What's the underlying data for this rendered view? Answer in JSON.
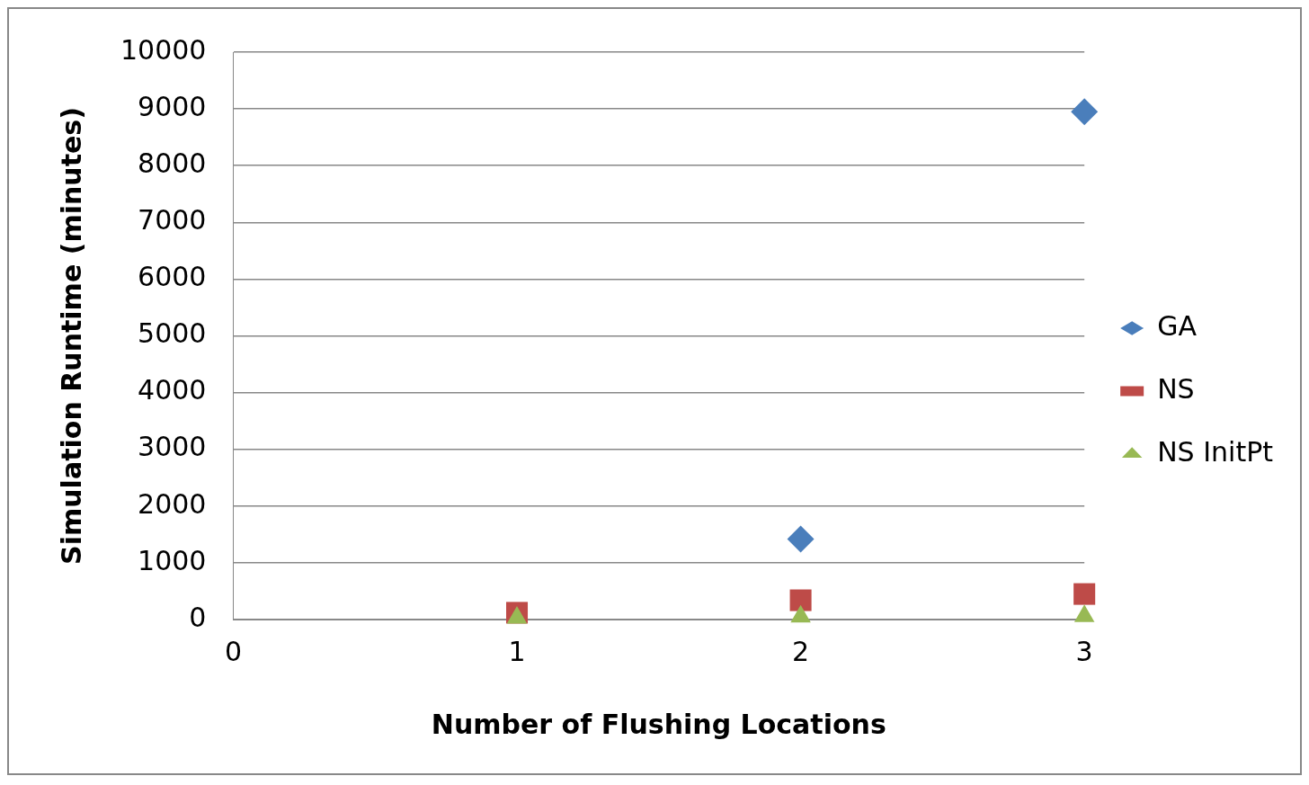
{
  "chart_data": {
    "type": "scatter",
    "xlabel": "Number of Flushing Locations",
    "ylabel": "Simulation Runtime (minutes)",
    "xlim": [
      0,
      3
    ],
    "xticks": [
      0,
      1,
      2,
      3
    ],
    "ylim": [
      0,
      10000
    ],
    "yticks": [
      0,
      1000,
      2000,
      3000,
      4000,
      5000,
      6000,
      7000,
      8000,
      9000,
      10000
    ],
    "grid": "y",
    "legend": "right",
    "series": [
      {
        "name": "GA",
        "color": "#4a7ebb",
        "marker": "diamond",
        "x": [
          2,
          3
        ],
        "values": [
          1420,
          8950
        ]
      },
      {
        "name": "NS",
        "color": "#be4b48",
        "marker": "square",
        "x": [
          1,
          2,
          3
        ],
        "values": [
          120,
          340,
          450
        ]
      },
      {
        "name": "NS InitPt",
        "color": "#98b954",
        "marker": "triangle",
        "x": [
          1,
          2,
          3
        ],
        "values": [
          30,
          50,
          60
        ]
      }
    ]
  }
}
